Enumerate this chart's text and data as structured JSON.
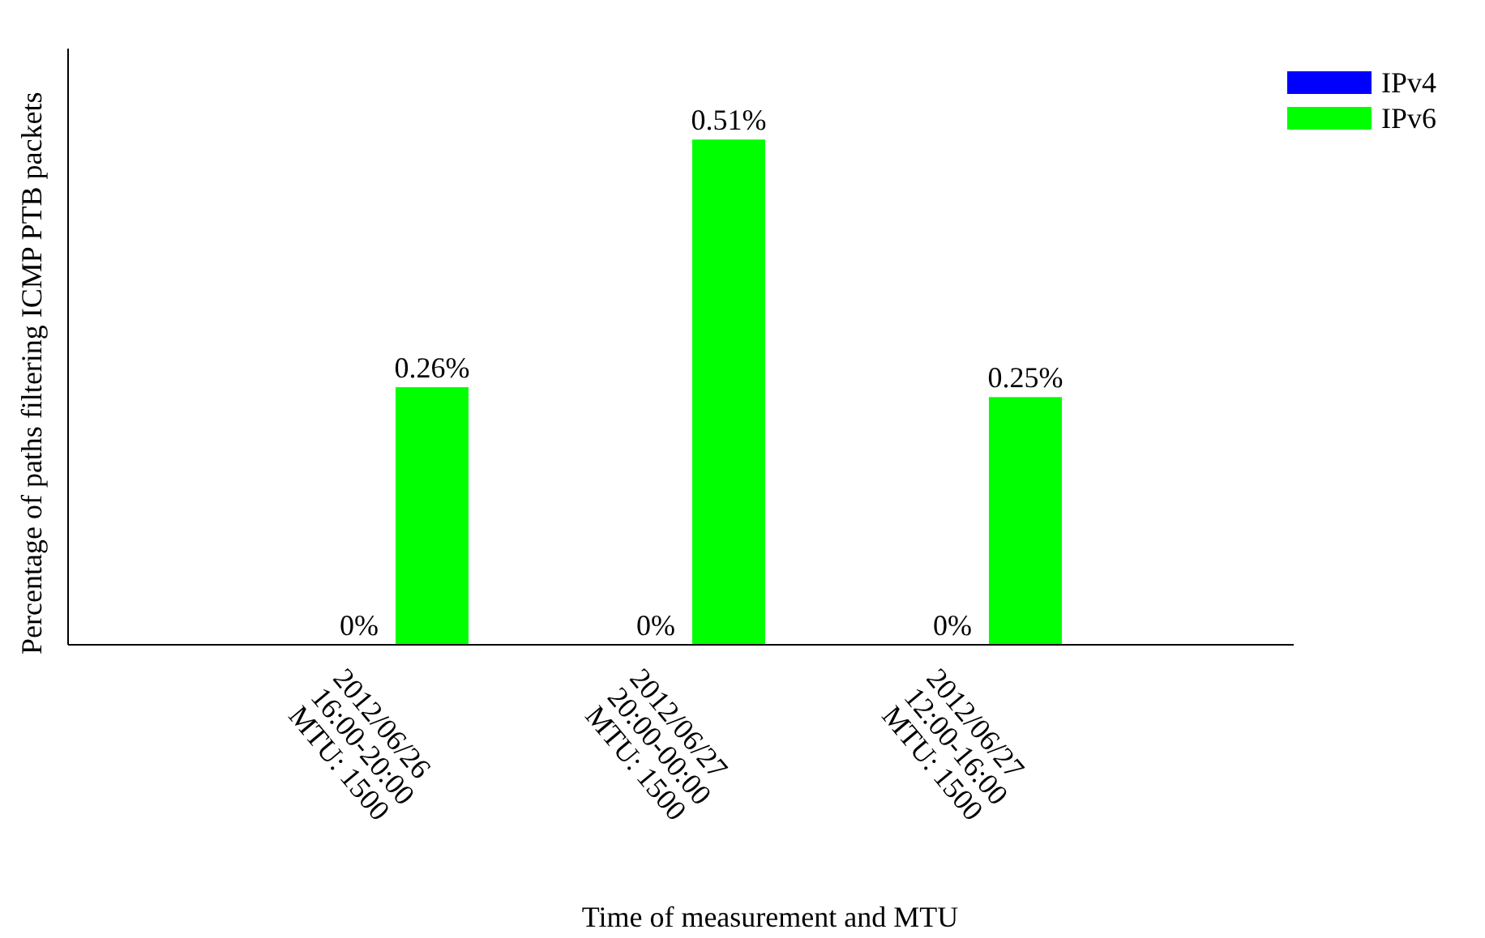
{
  "chart_data": {
    "type": "bar",
    "xlabel": "Time of measurement and MTU",
    "ylabel": "Percentage of paths filtering ICMP PTB packets",
    "categories": [
      "2012/06/26\n16:00-20:00\nMTU: 1500",
      "2012/06/27\n20:00-00:00\nMTU: 1500",
      "2012/06/27\n12:00-16:00\nMTU: 1500"
    ],
    "series": [
      {
        "name": "IPv4",
        "color": "#0000ff",
        "values": [
          0,
          0,
          0
        ],
        "value_labels": [
          "0%",
          "0%",
          "0%"
        ]
      },
      {
        "name": "IPv6",
        "color": "#00ff00",
        "values": [
          0.26,
          0.51,
          0.25
        ],
        "value_labels": [
          "0.26%",
          "0.51%",
          "0.25%"
        ]
      }
    ],
    "legend": "top right",
    "tick_labels": "x"
  }
}
